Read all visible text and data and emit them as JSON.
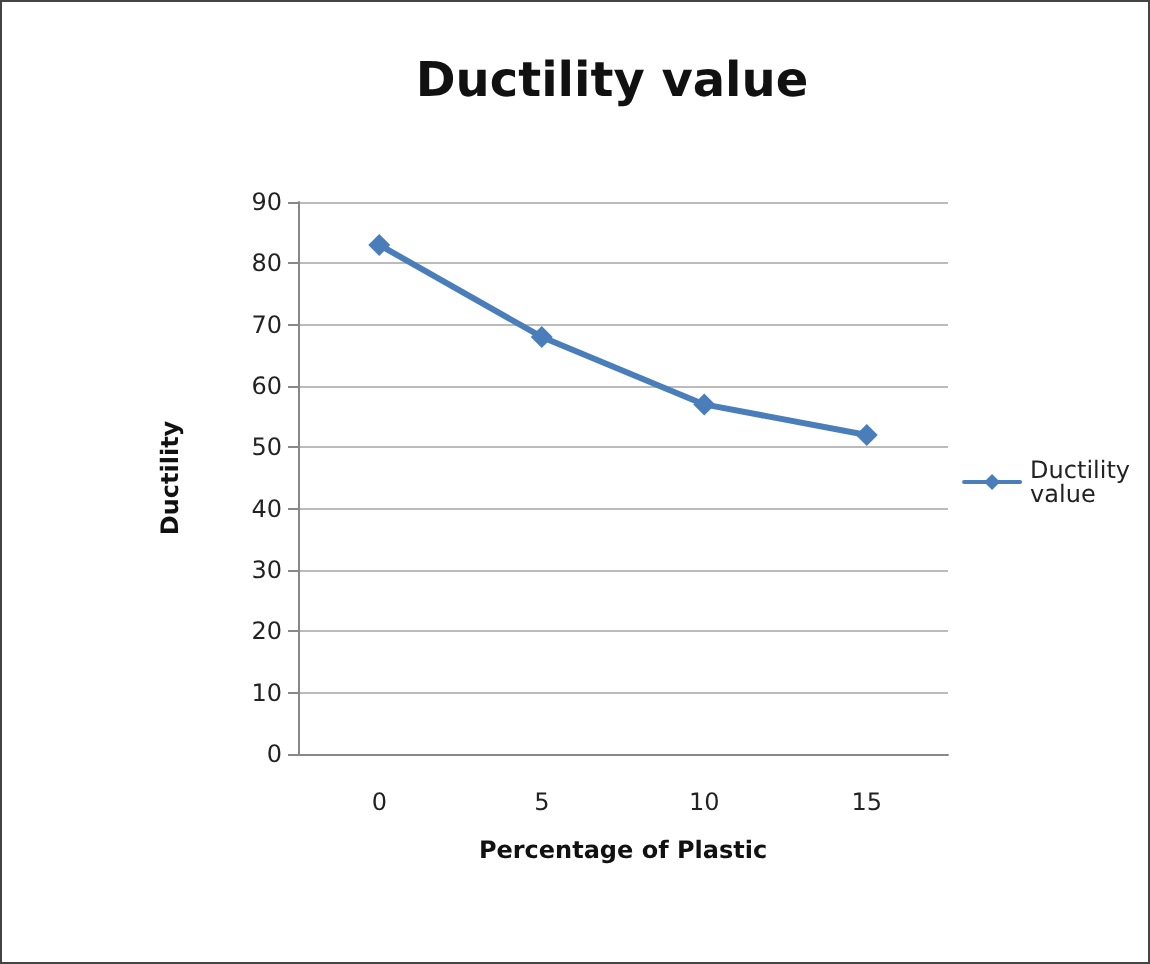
{
  "chart_data": {
    "type": "line",
    "title": "Ductility value",
    "xlabel": "Percentage of Plastic",
    "ylabel": "Ductility",
    "categories": [
      "0",
      "5",
      "10",
      "15"
    ],
    "series": [
      {
        "name": "Ductility value",
        "color": "#4a7ebb",
        "values": [
          83,
          68,
          57,
          52
        ]
      }
    ],
    "ylim": [
      0,
      90
    ],
    "yticks": [
      0,
      10,
      20,
      30,
      40,
      50,
      60,
      70,
      80,
      90
    ],
    "grid": "y",
    "legend": "right",
    "marker": "diamond",
    "line_style": "solid"
  }
}
